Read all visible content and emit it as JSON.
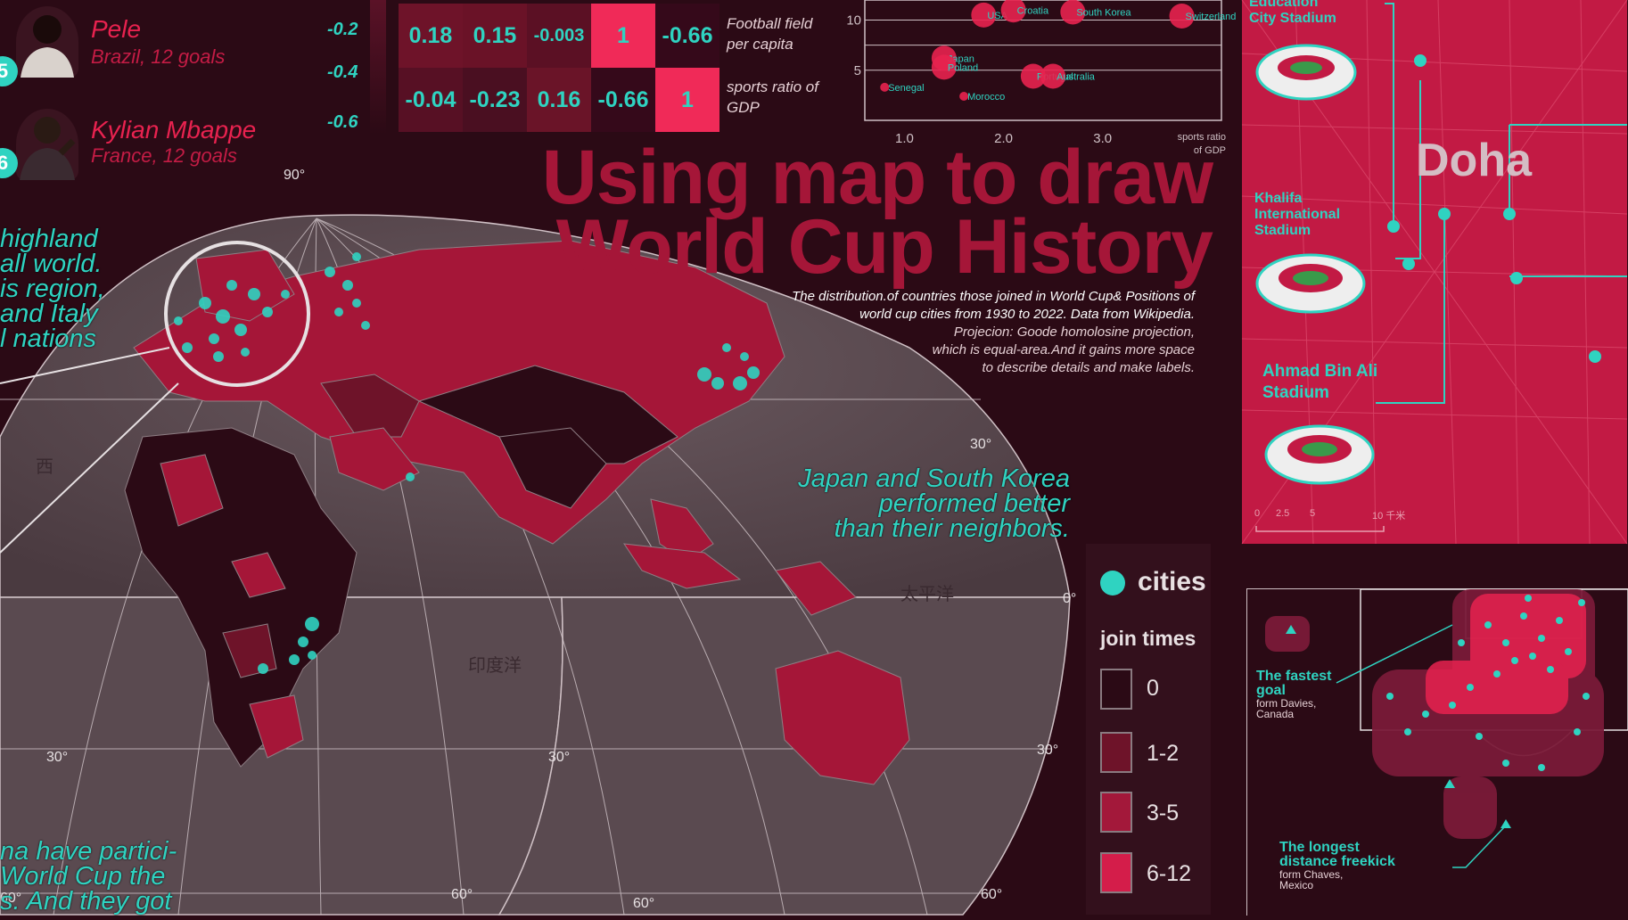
{
  "players": [
    {
      "rank": "5",
      "name": "Pele",
      "detail": "Brazil, 12 goals"
    },
    {
      "rank": "6",
      "name": "Kylian Mbappe",
      "detail": "France, 12 goals"
    }
  ],
  "scale_labels": [
    "-0.2",
    "-0.4",
    "-0.6"
  ],
  "correlation": {
    "rows": [
      {
        "label": "Football field per capita",
        "cells": [
          "0.18",
          "0.15",
          "-0.003",
          "1",
          "-0.66"
        ]
      },
      {
        "label": "sports ratio of GDP",
        "cells": [
          "-0.04",
          "-0.23",
          "0.16",
          "-0.66",
          "1"
        ]
      }
    ]
  },
  "scatter": {
    "chart_data": {
      "type": "scatter",
      "xlabel": "sports ratio of GDP",
      "x_ticks": [
        "1.0",
        "2.0",
        "3.0"
      ],
      "y_ticks": [
        "10",
        "5"
      ],
      "points": [
        {
          "label": "USA",
          "x": 1.8,
          "y": 10.5
        },
        {
          "label": "Croatia",
          "x": 2.1,
          "y": 11.0
        },
        {
          "label": "South Korea",
          "x": 2.7,
          "y": 10.8
        },
        {
          "label": "Switzerland",
          "x": 3.8,
          "y": 10.4
        },
        {
          "label": "Japan",
          "x": 1.4,
          "y": 6.2
        },
        {
          "label": "Poland",
          "x": 1.4,
          "y": 5.3
        },
        {
          "label": "Portugal",
          "x": 2.3,
          "y": 4.4
        },
        {
          "label": "Australia",
          "x": 2.5,
          "y": 4.4
        },
        {
          "label": "Senegal",
          "x": 0.8,
          "y": 3.3
        },
        {
          "label": "Morocco",
          "x": 1.6,
          "y": 2.4
        }
      ]
    }
  },
  "title_line1": "Using map to draw",
  "title_line2": "World Cup History",
  "subtitle_line1": "The distribution.of countries those joined in World Cup& Positions of",
  "subtitle_line2": "world cup cities from 1930 to 2022. Data from Wikipedia.",
  "projection_line1": "Projecion: Goode homolosine projection,",
  "projection_line2": "which is equal-area.And it gains more space",
  "projection_line3": "to describe details and make labels.",
  "map_labels": {
    "lat_90": "90°",
    "lat_30n_r": "30°",
    "lat_0": "0°",
    "lat_30s_r": "30°",
    "lat_30s_l": "30°",
    "lat_30s_m": "30°",
    "lat_60s_l": "60°",
    "lat_60s_m": "60°",
    "lat_60s_r": "60°",
    "lat_60s_ll": "60°",
    "indian_ocean": "印度洋",
    "pacific_ocean": "太平洋",
    "west_frag": "西"
  },
  "annotations": {
    "europe": [
      "highland",
      "all world.",
      "is region,",
      "and Italy",
      "l nations"
    ],
    "asia": [
      "Japan and South Korea",
      "performed better",
      "than their neighbors."
    ],
    "south_america": [
      "na have partici-",
      "World Cup the",
      "s. And they got"
    ]
  },
  "legend": {
    "cities_label": "cities",
    "join_title": "join times",
    "items": [
      {
        "label": "0",
        "color": "#2b0a15"
      },
      {
        "label": "1-2",
        "color": "#6e1329"
      },
      {
        "label": "3-5",
        "color": "#a3183a"
      },
      {
        "label": "6-12",
        "color": "#d41d4a"
      }
    ]
  },
  "doha": {
    "city": "Doha",
    "stadiums": [
      {
        "name_line1": "Education",
        "name_line2": "City Stadium"
      },
      {
        "name_line1": "Khalifa",
        "name_line2": "International",
        "name_line3": "Stadium"
      },
      {
        "name_line1": "Ahmad Bin Ali",
        "name_line2": "Stadium"
      }
    ],
    "scalebar": [
      "0",
      "2.5",
      "5",
      "10 千米"
    ]
  },
  "field": {
    "fastest_title_1": "The fastest",
    "fastest_title_2": "goal",
    "fastest_sub_1": "form Davies,",
    "fastest_sub_2": "Canada",
    "freekick_title_1": "The longest",
    "freekick_title_2": "distance freekick",
    "freekick_sub_1": "form Chaves,",
    "freekick_sub_2": "Mexico"
  },
  "colors": {
    "background": "#2b0a15",
    "accent_teal": "#2fd3c1",
    "crimson": "#e8224f",
    "title": "#a51638"
  }
}
